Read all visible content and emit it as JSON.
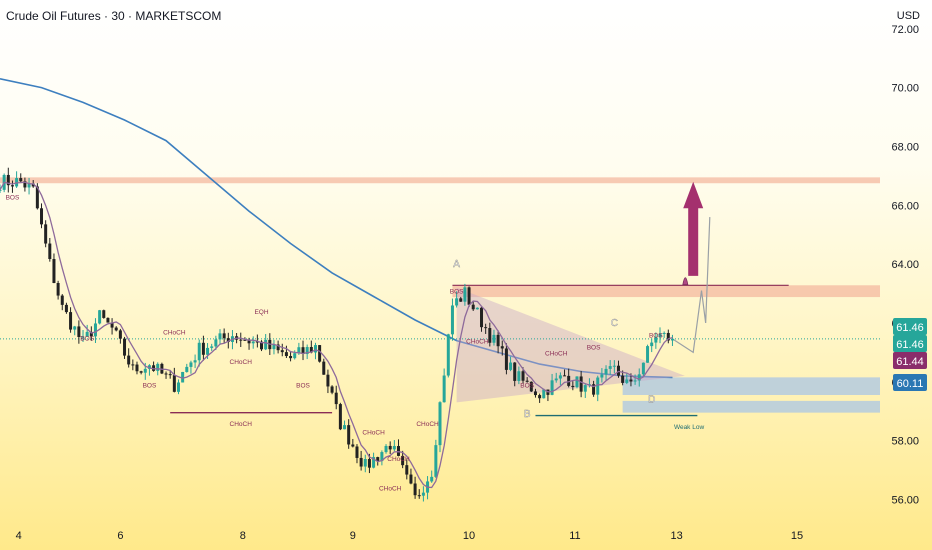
{
  "header": {
    "title": "Crude Oil Futures · 30 · MARKETSCOM",
    "currency": "USD"
  },
  "colors": {
    "bull": "#26a69a",
    "bear": "#222222",
    "ma_long": "#3d7fbf",
    "ma_short": "#8e6a9b",
    "resistance": "#f4b9a0",
    "support": "#a9c6e6",
    "arrow": "#a4306e",
    "choch_line": "#8a2d55",
    "weak_low_line": "#1f6d73"
  },
  "price_labels": [
    {
      "value": "61.46",
      "bg": "#26a69a"
    },
    {
      "value": "61.46",
      "bg": "#26a69a"
    },
    {
      "value": "61.44",
      "bg": "#8a2d6b"
    },
    {
      "value": "60.11",
      "bg": "#2a77b3"
    }
  ],
  "chart_data": {
    "type": "candlestick",
    "title": "Crude Oil Futures · 30 · MARKETSCOM",
    "currency": "USD",
    "ylim": [
      55.3,
      72.3
    ],
    "x_tick_labels": [
      "4",
      "6",
      "8",
      "9",
      "10",
      "11",
      "13",
      "15"
    ],
    "y_tick_labels": [
      "56.00",
      "58.00",
      "60.00",
      "62.00",
      "64.00",
      "66.00",
      "68.00",
      "70.00",
      "72.00"
    ],
    "y_tick_values": [
      56,
      58,
      60,
      62,
      64,
      66,
      68,
      70,
      72
    ],
    "last_price": 61.46,
    "path_anchors": [
      {
        "x": 0,
        "y": 66.8
      },
      {
        "x": 5,
        "y": 66.8
      },
      {
        "x": 8,
        "y": 66.5
      },
      {
        "x": 12,
        "y": 64.0
      },
      {
        "x": 15,
        "y": 62.5
      },
      {
        "x": 20,
        "y": 61.3
      },
      {
        "x": 24,
        "y": 62.2
      },
      {
        "x": 27,
        "y": 61.8
      },
      {
        "x": 32,
        "y": 60.4
      },
      {
        "x": 36,
        "y": 60.6
      },
      {
        "x": 42,
        "y": 59.9
      },
      {
        "x": 48,
        "y": 61.1
      },
      {
        "x": 56,
        "y": 61.6
      },
      {
        "x": 64,
        "y": 61.2
      },
      {
        "x": 70,
        "y": 60.8
      },
      {
        "x": 76,
        "y": 61.2
      },
      {
        "x": 82,
        "y": 58.6
      },
      {
        "x": 88,
        "y": 57.1
      },
      {
        "x": 94,
        "y": 57.9
      },
      {
        "x": 100,
        "y": 56.0
      },
      {
        "x": 104,
        "y": 57.0
      },
      {
        "x": 109,
        "y": 62.6
      },
      {
        "x": 112,
        "y": 63.0
      },
      {
        "x": 118,
        "y": 61.6
      },
      {
        "x": 124,
        "y": 60.2
      },
      {
        "x": 130,
        "y": 59.6
      },
      {
        "x": 136,
        "y": 60.2
      },
      {
        "x": 142,
        "y": 59.7
      },
      {
        "x": 148,
        "y": 60.4
      },
      {
        "x": 152,
        "y": 59.8
      },
      {
        "x": 158,
        "y": 61.6
      },
      {
        "x": 162,
        "y": 61.46
      }
    ],
    "ma_long": [
      {
        "x": 0,
        "y": 70.3
      },
      {
        "x": 10,
        "y": 70.0
      },
      {
        "x": 20,
        "y": 69.5
      },
      {
        "x": 30,
        "y": 68.9
      },
      {
        "x": 40,
        "y": 68.2
      },
      {
        "x": 50,
        "y": 67.0
      },
      {
        "x": 60,
        "y": 65.8
      },
      {
        "x": 70,
        "y": 64.7
      },
      {
        "x": 80,
        "y": 63.7
      },
      {
        "x": 90,
        "y": 62.9
      },
      {
        "x": 100,
        "y": 62.1
      },
      {
        "x": 110,
        "y": 61.4
      },
      {
        "x": 120,
        "y": 61.0
      },
      {
        "x": 130,
        "y": 60.6
      },
      {
        "x": 140,
        "y": 60.35
      },
      {
        "x": 150,
        "y": 60.2
      },
      {
        "x": 162,
        "y": 60.15
      }
    ],
    "zones": [
      {
        "name": "resistance-zone",
        "y1": 66.75,
        "y2": 66.95,
        "x1": 0,
        "x2": 212
      },
      {
        "name": "supply-zone",
        "y1": 62.88,
        "y2": 63.28,
        "x1": 109,
        "x2": 212
      },
      {
        "name": "demand-zone",
        "y1": 59.55,
        "y2": 60.15,
        "x1": 150,
        "x2": 212
      },
      {
        "name": "demand-zone-lower",
        "y1": 58.95,
        "y2": 59.35,
        "x1": 150,
        "x2": 212
      }
    ],
    "annotations": [
      {
        "text": "BOS",
        "x": 3,
        "y": 66.2
      },
      {
        "text": "BOS",
        "x": 21,
        "y": 61.4
      },
      {
        "text": "CHoCH",
        "x": 42,
        "y": 61.6
      },
      {
        "text": "EQH",
        "x": 63,
        "y": 62.3
      },
      {
        "text": "BOS",
        "x": 36,
        "y": 59.8
      },
      {
        "text": "CHoCH",
        "x": 58,
        "y": 60.6
      },
      {
        "text": "BOS",
        "x": 73,
        "y": 59.8
      },
      {
        "text": "CHoCH",
        "x": 58,
        "y": 58.5
      },
      {
        "text": "CHoCH",
        "x": 90,
        "y": 58.2
      },
      {
        "text": "CHoCH",
        "x": 103,
        "y": 58.5
      },
      {
        "text": "CHoCH",
        "x": 94,
        "y": 56.3
      },
      {
        "text": "CHoCH",
        "x": 96,
        "y": 57.3
      },
      {
        "text": "BOS",
        "x": 110,
        "y": 63.0
      },
      {
        "text": "CHoCH",
        "x": 115,
        "y": 61.3
      },
      {
        "text": "CHoCH",
        "x": 134,
        "y": 60.9
      },
      {
        "text": "BOS",
        "x": 143,
        "y": 61.1
      },
      {
        "text": "BOS",
        "x": 158,
        "y": 61.5
      },
      {
        "text": "BOS",
        "x": 127,
        "y": 59.8
      },
      {
        "text": "Weak Low",
        "x": 166,
        "y": 58.4
      },
      {
        "text": "A",
        "x": 110,
        "y": 63.9
      },
      {
        "text": "B",
        "x": 127,
        "y": 58.8
      },
      {
        "text": "C",
        "x": 148,
        "y": 61.9
      },
      {
        "text": "D",
        "x": 157,
        "y": 59.3
      }
    ]
  }
}
